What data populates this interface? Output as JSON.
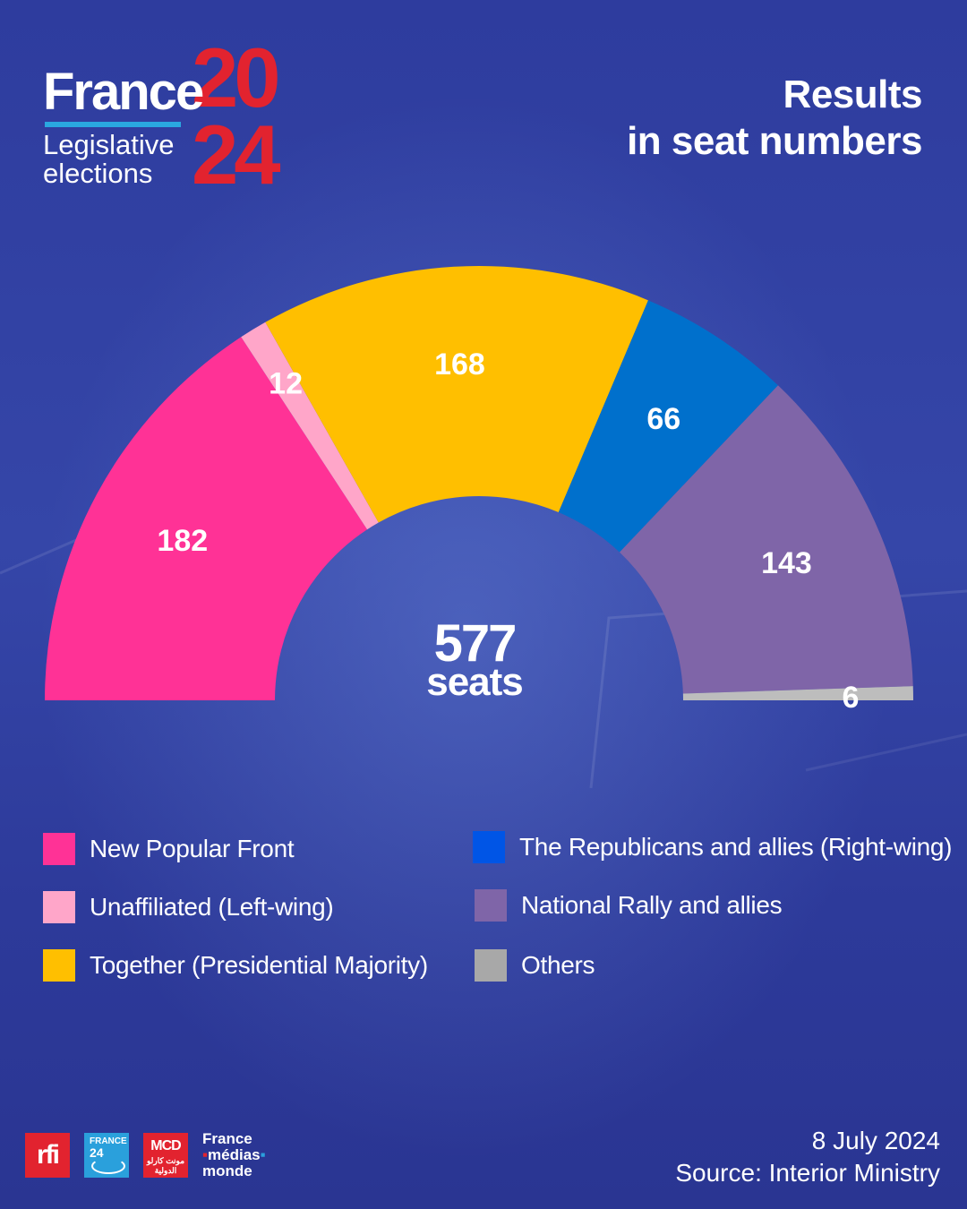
{
  "logo": {
    "brand": "France",
    "subtitle_line1": "Legislative",
    "subtitle_line2": "elections",
    "year_top": "20",
    "year_bottom": "24",
    "brand_color": "#e2232f",
    "accent_color": "#2aa8e0"
  },
  "header": {
    "title_line1": "Results",
    "title_line2": "in seat numbers"
  },
  "chart_data": {
    "type": "pie",
    "subtype": "half-donut (parliament)",
    "total_value": "577",
    "total_label": "seats",
    "series": [
      {
        "name": "New Popular Front",
        "value": 182,
        "label": "182",
        "color": "#ff3296"
      },
      {
        "name": "Unaffiliated (Left-wing)",
        "value": 12,
        "label": "12",
        "color": "#ffa6c9"
      },
      {
        "name": "Together (Presidential Majority)",
        "value": 168,
        "label": "168",
        "color": "#ffbf00"
      },
      {
        "name": "The Republicans and allies (Right-wing)",
        "value": 66,
        "label": "66",
        "color": "#0070cc"
      },
      {
        "name": "National Rally and allies",
        "value": 143,
        "label": "143",
        "color": "#7f65a8"
      },
      {
        "name": "Others",
        "value": 6,
        "label": "6",
        "color": "#bdbdbd"
      }
    ]
  },
  "legend": {
    "items": [
      {
        "label": "New Popular Front",
        "color": "#ff3296"
      },
      {
        "label": "Unaffiliated (Left-wing)",
        "color": "#ffa6c9"
      },
      {
        "label": "Together (Presidential Majority)",
        "color": "#ffbf00"
      },
      {
        "label": "The Republicans and allies (Right-wing)",
        "color": "#0055e6"
      },
      {
        "label": "National Rally and allies",
        "color": "#7f65a8"
      },
      {
        "label": "Others",
        "color": "#a8a8a8"
      }
    ]
  },
  "footer": {
    "logo_rfi": "rfi",
    "logo_france24_top": "FRANCE",
    "logo_france24_num": "24",
    "logo_mcd": "MCD",
    "logo_mcd_arabic": "مونت كارلو الدولية",
    "fmm_line1": "France",
    "fmm_line2": "médias",
    "fmm_line3": "monde",
    "date": "8 July 2024",
    "source": "Source: Interior Ministry"
  }
}
